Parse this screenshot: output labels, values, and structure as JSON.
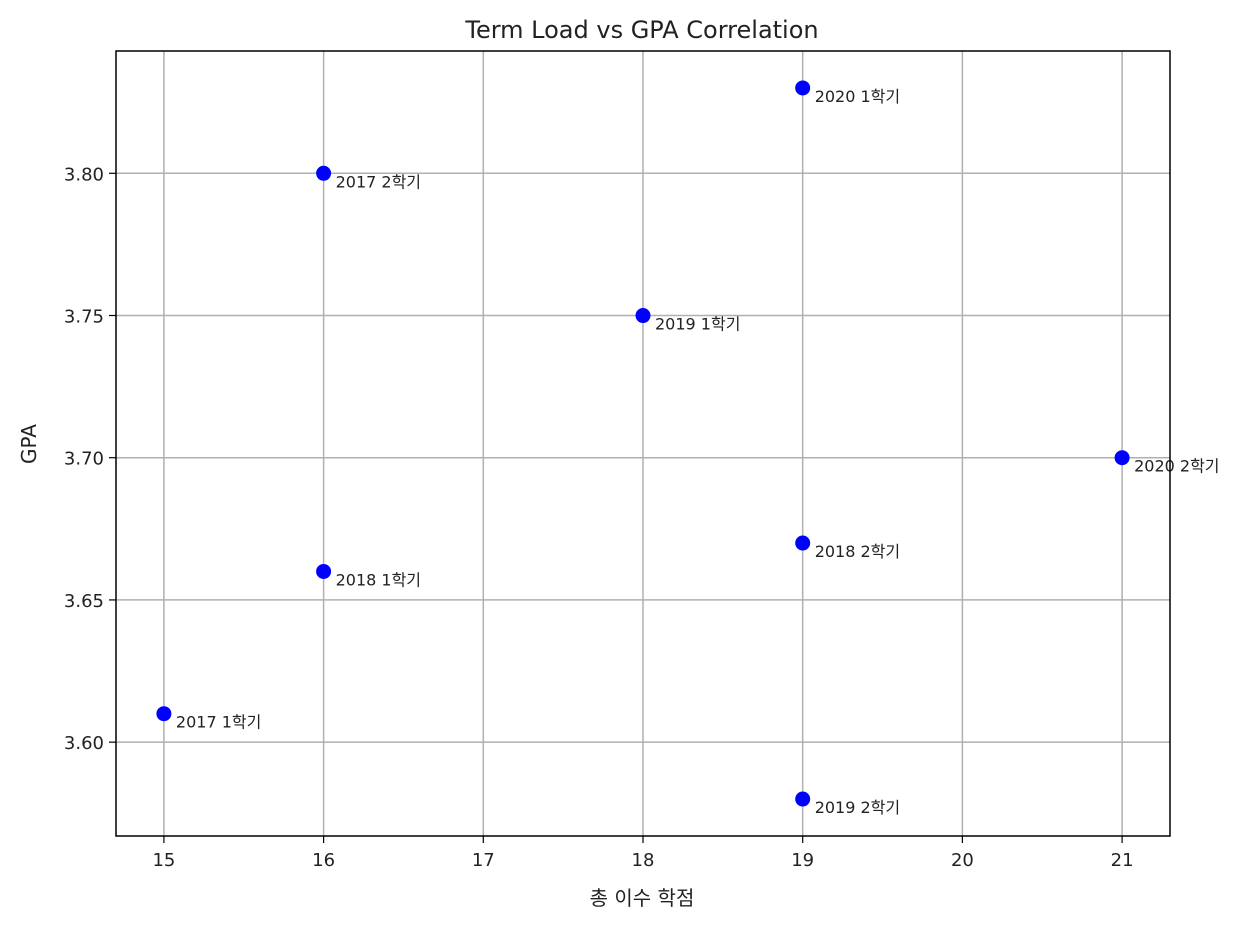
{
  "chart_data": {
    "type": "scatter",
    "title": "Term Load vs GPA Correlation",
    "xlabel": "총 이수 학점",
    "ylabel": "GPA",
    "xlim": [
      14.7,
      21.3
    ],
    "ylim": [
      3.567,
      3.843
    ],
    "xticks": [
      15,
      16,
      17,
      18,
      19,
      20,
      21
    ],
    "xtick_labels": [
      "15",
      "16",
      "17",
      "18",
      "19",
      "20",
      "21"
    ],
    "yticks": [
      3.6,
      3.65,
      3.7,
      3.75,
      3.8
    ],
    "ytick_labels": [
      "3.60",
      "3.65",
      "3.70",
      "3.75",
      "3.80"
    ],
    "grid": true,
    "marker_color": "#0000ff",
    "points": [
      {
        "x": 15,
        "y": 3.61,
        "label": "2017 1학기"
      },
      {
        "x": 16,
        "y": 3.8,
        "label": "2017 2학기"
      },
      {
        "x": 16,
        "y": 3.66,
        "label": "2018 1학기"
      },
      {
        "x": 19,
        "y": 3.67,
        "label": "2018 2학기"
      },
      {
        "x": 18,
        "y": 3.75,
        "label": "2019 1학기"
      },
      {
        "x": 19,
        "y": 3.58,
        "label": "2019 2학기"
      },
      {
        "x": 19,
        "y": 3.83,
        "label": "2020 1학기"
      },
      {
        "x": 21,
        "y": 3.7,
        "label": "2020 2학기"
      }
    ]
  }
}
